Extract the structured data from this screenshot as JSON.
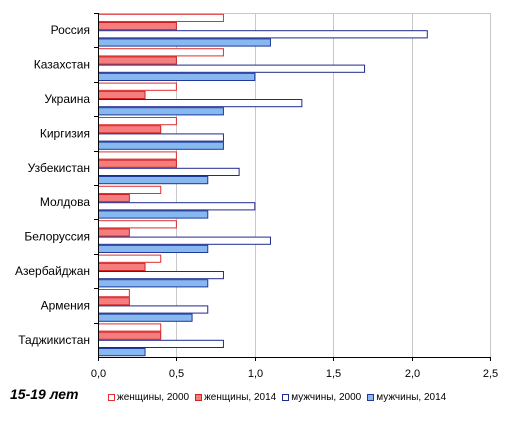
{
  "caption": "15-19 лет",
  "chart_data": {
    "type": "bar",
    "orientation": "horizontal",
    "categories": [
      "Россия",
      "Казахстан",
      "Украина",
      "Киргизия",
      "Узбекистан",
      "Молдова",
      "Белоруссия",
      "Азербайджан",
      "Армения",
      "Таджикистан"
    ],
    "series": [
      {
        "name": "женщины, 2000",
        "values": [
          0.8,
          0.8,
          0.5,
          0.5,
          0.5,
          0.4,
          0.5,
          0.4,
          0.2,
          0.4
        ],
        "fill": "#ffffff",
        "stroke": "#e03030"
      },
      {
        "name": "женщины, 2014",
        "values": [
          0.5,
          0.5,
          0.3,
          0.4,
          0.5,
          0.2,
          0.2,
          0.3,
          0.2,
          0.4
        ],
        "fill": "#f47e7e",
        "stroke": "#d42020"
      },
      {
        "name": "мужчины, 2000",
        "values": [
          2.1,
          1.7,
          1.3,
          0.8,
          0.9,
          1.0,
          1.1,
          0.8,
          0.7,
          0.8
        ],
        "fill": "#ffffff",
        "stroke": "#1f2a90"
      },
      {
        "name": "мужчины, 2014",
        "values": [
          1.1,
          1.0,
          0.8,
          0.8,
          0.7,
          0.7,
          0.7,
          0.7,
          0.6,
          0.3
        ],
        "fill": "#87b8f0",
        "stroke": "#1f3a9a"
      }
    ],
    "xlim": [
      0,
      2.5
    ],
    "xticks": [
      "0,0",
      "0,5",
      "1,0",
      "1,5",
      "2,0",
      "2,5"
    ],
    "grid": true,
    "legend_position": "bottom"
  }
}
